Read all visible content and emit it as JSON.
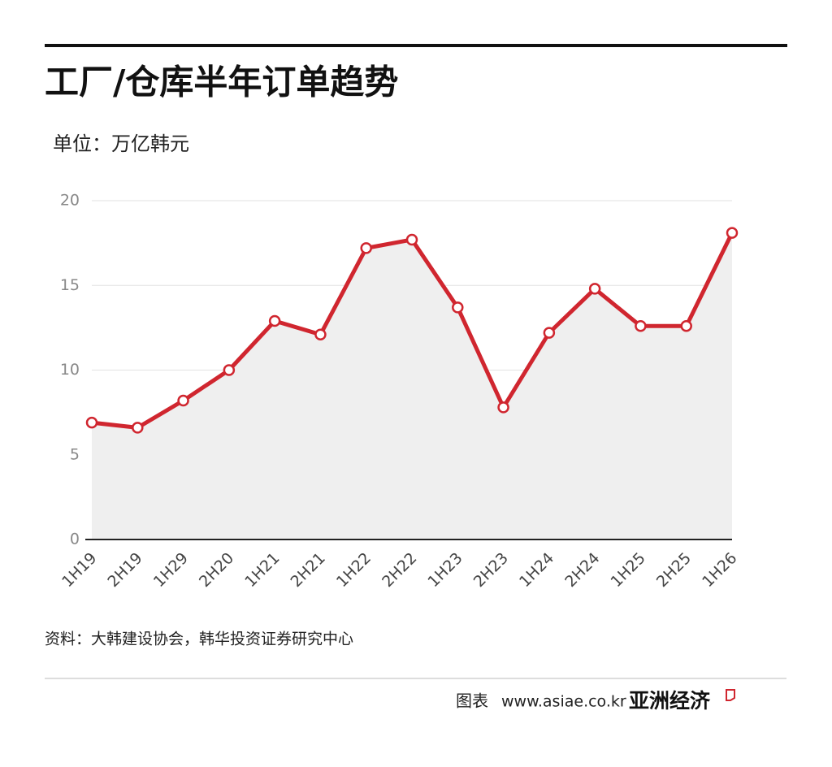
{
  "chart_data": {
    "type": "line",
    "title": "工厂/仓库半年订单趋势",
    "subtitle": "单位：万亿韩元",
    "source": "资料：大韩建设协会，韩华投资证券研究中心",
    "categories": [
      "1H19",
      "2H19",
      "1H29",
      "2H20",
      "1H21",
      "2H21",
      "1H22",
      "2H22",
      "1H23",
      "2H23",
      "1H24",
      "2H24",
      "1H25",
      "2H25",
      "1H26"
    ],
    "values": [
      6.9,
      6.6,
      8.2,
      10.0,
      12.9,
      12.1,
      17.2,
      17.7,
      13.7,
      7.8,
      12.2,
      14.8,
      12.6,
      12.6,
      18.1
    ],
    "color": "#d0262f",
    "area_color": "#efefef",
    "ylim": [
      0,
      20
    ],
    "yticks": [
      0,
      5,
      10,
      15,
      20
    ],
    "grid": true
  },
  "footer": {
    "label": "图表",
    "url": "www.asiae.co.kr",
    "brand": "亚洲经济"
  }
}
